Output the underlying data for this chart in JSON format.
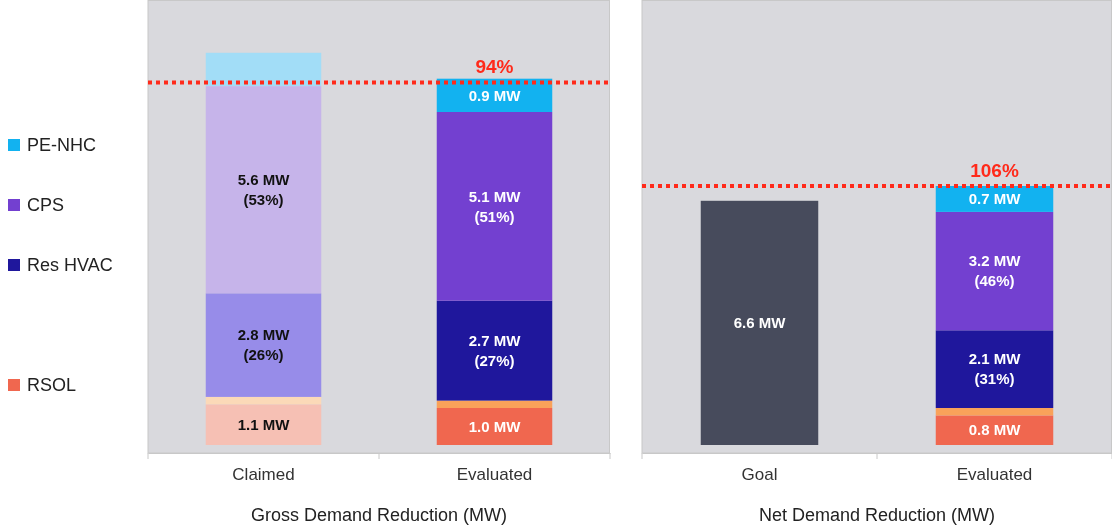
{
  "chart_data": [
    {
      "type": "bar",
      "stacked": true,
      "xlabel": "Gross Demand Reduction (MW)",
      "categories": [
        "Claimed",
        "Evaluated"
      ],
      "ylim": [
        0,
        12
      ],
      "tick_labels": "x",
      "legend": "left",
      "series": [
        {
          "name": "RSOL",
          "color": "#f0674f",
          "colors": [
            "#f6c0b4",
            "#f0674f"
          ],
          "values": [
            1.1,
            1.0
          ],
          "value_labels": [
            "1.1 MW",
            "1.0 MW"
          ]
        },
        {
          "colors": [
            "#fbd9b8",
            "#f9a25a"
          ],
          "values": [
            0.2,
            0.2
          ],
          "value_labels": [
            null,
            null
          ]
        },
        {
          "name": "Res HVAC",
          "color": "#1f179c",
          "colors": [
            "#978ce9",
            "#1f179c"
          ],
          "values": [
            2.8,
            2.7
          ],
          "value_labels": [
            "2.8 MW\n(26%)",
            "2.7 MW\n(27%)"
          ]
        },
        {
          "name": "CPS",
          "color": "#7340d0",
          "colors": [
            "#c6b4ea",
            "#7340d0"
          ],
          "values": [
            5.6,
            5.1
          ],
          "value_labels": [
            "5.6 MW\n(53%)",
            "5.1 MW\n(51%)"
          ]
        },
        {
          "name": "PE-NHC",
          "color": "#12b2f0",
          "colors": [
            "#a2ddf7",
            "#12b2f0"
          ],
          "values": [
            0.9,
            0.9
          ],
          "value_labels": [
            null,
            "0.9 MW"
          ]
        }
      ],
      "ref_lines": [
        {
          "axis": "y",
          "value": 9.8,
          "color": "#ff2a1a",
          "line_style": "dotted"
        }
      ],
      "annotations": [
        {
          "text": "94%",
          "x": "Evaluated",
          "y": 9.8
        }
      ]
    },
    {
      "type": "bar",
      "stacked": true,
      "xlabel": "Net Demand Reduction (MW)",
      "categories": [
        "Goal",
        "Evaluated"
      ],
      "ylim": [
        0,
        12
      ],
      "tick_labels": "x",
      "series": [
        {
          "color": "#474b5c",
          "values": [
            6.6,
            null
          ],
          "value_labels": [
            "6.6 MW",
            null
          ]
        },
        {
          "color": "#f0674f",
          "values": [
            null,
            0.8
          ],
          "value_labels": [
            null,
            "0.8 MW"
          ]
        },
        {
          "color": "#f9a25a",
          "values": [
            null,
            0.2
          ],
          "value_labels": [
            null,
            null
          ]
        },
        {
          "color": "#1f179c",
          "values": [
            null,
            2.1
          ],
          "value_labels": [
            null,
            "2.1 MW\n(31%)"
          ]
        },
        {
          "color": "#7340d0",
          "values": [
            null,
            3.2
          ],
          "value_labels": [
            null,
            "3.2 MW\n(46%)"
          ]
        },
        {
          "color": "#12b2f0",
          "values": [
            null,
            0.7
          ],
          "value_labels": [
            null,
            "0.7 MW"
          ]
        }
      ],
      "ref_lines": [
        {
          "axis": "y",
          "value": 7.0,
          "color": "#ff2a1a",
          "line_style": "dotted"
        }
      ],
      "annotations": [
        {
          "text": "106%",
          "x": "Evaluated",
          "y": 7.0
        }
      ]
    }
  ]
}
